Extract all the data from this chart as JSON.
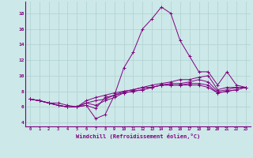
{
  "xlabel": "Windchill (Refroidissement éolien,°C)",
  "bg_color": "#cce8e8",
  "line_color": "#800080",
  "grid_color": "#b0d0d0",
  "xlim": [
    -0.5,
    23.5
  ],
  "ylim": [
    3.5,
    19.5
  ],
  "yticks": [
    4,
    6,
    8,
    10,
    12,
    14,
    16,
    18
  ],
  "xticks": [
    0,
    1,
    2,
    3,
    4,
    5,
    6,
    7,
    8,
    9,
    10,
    11,
    12,
    13,
    14,
    15,
    16,
    17,
    18,
    19,
    20,
    21,
    22,
    23
  ],
  "lines": [
    [
      7.0,
      6.8,
      6.5,
      6.2,
      6.0,
      6.0,
      6.2,
      4.5,
      5.0,
      7.5,
      11.0,
      13.0,
      16.0,
      17.3,
      18.8,
      18.0,
      14.5,
      12.5,
      10.5,
      10.5,
      8.8,
      10.5,
      8.8,
      8.5
    ],
    [
      7.0,
      6.8,
      6.5,
      6.2,
      6.0,
      6.0,
      6.2,
      5.8,
      7.2,
      7.5,
      8.0,
      8.2,
      8.5,
      8.8,
      9.0,
      9.2,
      9.5,
      9.5,
      9.8,
      10.0,
      8.2,
      8.5,
      8.5,
      8.5
    ],
    [
      7.0,
      6.8,
      6.5,
      6.2,
      6.0,
      6.0,
      6.5,
      6.2,
      6.8,
      7.2,
      7.8,
      8.0,
      8.2,
      8.5,
      8.8,
      9.0,
      9.0,
      9.2,
      9.5,
      9.2,
      8.0,
      8.2,
      8.5,
      8.5
    ],
    [
      7.0,
      6.8,
      6.5,
      6.2,
      6.0,
      6.0,
      6.5,
      6.8,
      7.0,
      7.5,
      7.8,
      8.0,
      8.2,
      8.5,
      8.8,
      8.8,
      8.8,
      9.0,
      9.0,
      8.8,
      7.8,
      8.0,
      8.2,
      8.5
    ],
    [
      7.0,
      6.8,
      6.5,
      6.5,
      6.2,
      6.0,
      6.8,
      7.2,
      7.5,
      7.8,
      8.0,
      8.2,
      8.5,
      8.5,
      8.8,
      8.8,
      8.8,
      8.8,
      8.8,
      8.5,
      7.8,
      8.0,
      8.2,
      8.5
    ]
  ]
}
